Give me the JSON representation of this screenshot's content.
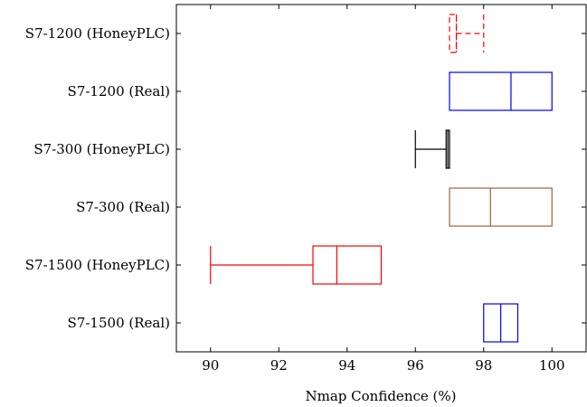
{
  "chart_data": {
    "type": "boxplot",
    "orientation": "horizontal",
    "xlabel": "Nmap Confidence (%)",
    "xlim": [
      89,
      101
    ],
    "xticks": [
      90,
      92,
      94,
      96,
      98,
      100
    ],
    "xtick_labels": [
      "90",
      "92",
      "94",
      "96",
      "98",
      "100"
    ],
    "grid": false,
    "categories": [
      "S7-1200 (HoneyPLC)",
      "S7-1200 (Real)",
      "S7-300 (HoneyPLC)",
      "S7-300 (Real)",
      "S7-1500 (HoneyPLC)",
      "S7-1500 (Real)"
    ],
    "boxes": [
      {
        "category": "S7-1200 (HoneyPLC)",
        "min": 97,
        "q1": 97,
        "median": 97.2,
        "q3": 97.2,
        "max": 98,
        "color": "#ff0000",
        "dashed": true
      },
      {
        "category": "S7-1200 (Real)",
        "min": 97,
        "q1": 97,
        "median": 98.8,
        "q3": 100,
        "max": 100,
        "color": "#0000ff",
        "dashed": false
      },
      {
        "category": "S7-300 (HoneyPLC)",
        "min": 96,
        "q1": 96.9,
        "median": 96.95,
        "q3": 97,
        "max": 97,
        "color": "#000000",
        "dashed": false
      },
      {
        "category": "S7-300 (Real)",
        "min": 97,
        "q1": 97,
        "median": 98.2,
        "q3": 100,
        "max": 100,
        "color": "#996633",
        "dashed": false
      },
      {
        "category": "S7-1500 (HoneyPLC)",
        "min": 90,
        "q1": 93,
        "median": 93.7,
        "q3": 95,
        "max": 95,
        "color": "#ff0000",
        "dashed": false
      },
      {
        "category": "S7-1500 (Real)",
        "min": 98,
        "q1": 98,
        "median": 98.5,
        "q3": 99,
        "max": 99,
        "color": "#0000ff",
        "dashed": false
      }
    ]
  }
}
